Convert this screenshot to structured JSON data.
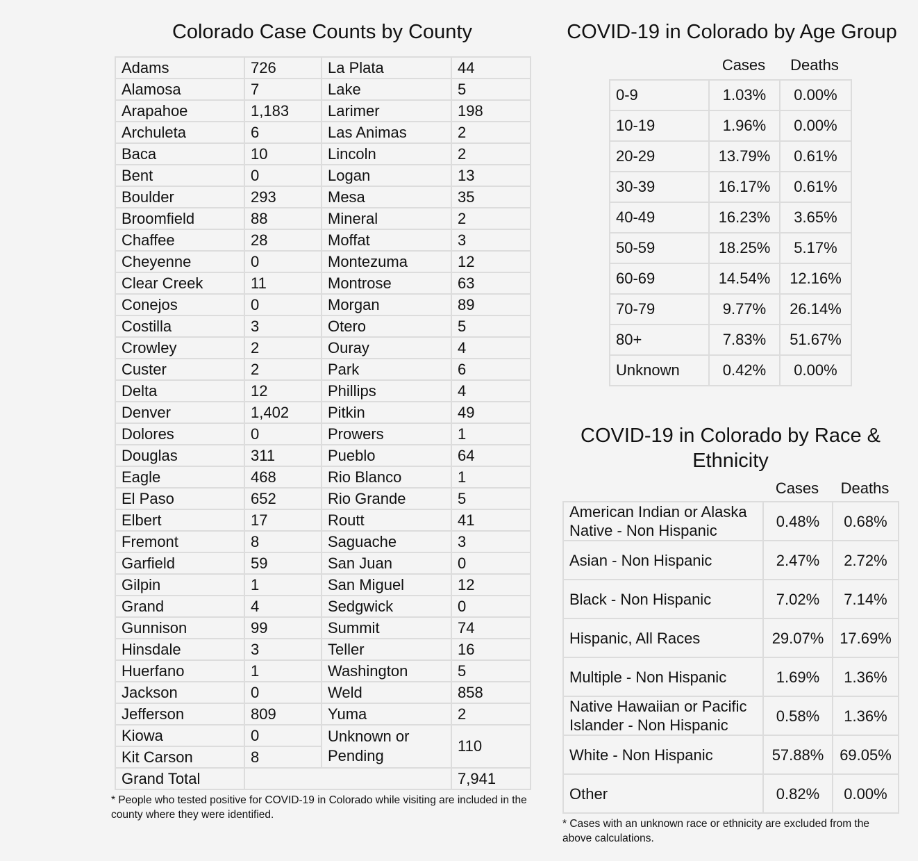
{
  "county": {
    "title": "Colorado Case Counts by County",
    "left": [
      [
        "Adams",
        "726"
      ],
      [
        "Alamosa",
        "7"
      ],
      [
        "Arapahoe",
        "1,183"
      ],
      [
        "Archuleta",
        "6"
      ],
      [
        "Baca",
        "10"
      ],
      [
        "Bent",
        "0"
      ],
      [
        "Boulder",
        "293"
      ],
      [
        "Broomfield",
        "88"
      ],
      [
        "Chaffee",
        "28"
      ],
      [
        "Cheyenne",
        "0"
      ],
      [
        "Clear Creek",
        "11"
      ],
      [
        "Conejos",
        "0"
      ],
      [
        "Costilla",
        "3"
      ],
      [
        "Crowley",
        "2"
      ],
      [
        "Custer",
        "2"
      ],
      [
        "Delta",
        "12"
      ],
      [
        "Denver",
        "1,402"
      ],
      [
        "Dolores",
        "0"
      ],
      [
        "Douglas",
        "311"
      ],
      [
        "Eagle",
        "468"
      ],
      [
        "El Paso",
        "652"
      ],
      [
        "Elbert",
        "17"
      ],
      [
        "Fremont",
        "8"
      ],
      [
        "Garfield",
        "59"
      ],
      [
        "Gilpin",
        "1"
      ],
      [
        "Grand",
        "4"
      ],
      [
        "Gunnison",
        "99"
      ],
      [
        "Hinsdale",
        "3"
      ],
      [
        "Huerfano",
        "1"
      ],
      [
        "Jackson",
        "0"
      ],
      [
        "Jefferson",
        "809"
      ],
      [
        "Kiowa",
        "0"
      ],
      [
        "Kit Carson",
        "8"
      ]
    ],
    "right": [
      [
        "La Plata",
        "44"
      ],
      [
        "Lake",
        "5"
      ],
      [
        "Larimer",
        "198"
      ],
      [
        "Las Animas",
        "2"
      ],
      [
        "Lincoln",
        "2"
      ],
      [
        "Logan",
        "13"
      ],
      [
        "Mesa",
        "35"
      ],
      [
        "Mineral",
        "2"
      ],
      [
        "Moffat",
        "3"
      ],
      [
        "Montezuma",
        "12"
      ],
      [
        "Montrose",
        "63"
      ],
      [
        "Morgan",
        "89"
      ],
      [
        "Otero",
        "5"
      ],
      [
        "Ouray",
        "4"
      ],
      [
        "Park",
        "6"
      ],
      [
        "Phillips",
        "4"
      ],
      [
        "Pitkin",
        "49"
      ],
      [
        "Prowers",
        "1"
      ],
      [
        "Pueblo",
        "64"
      ],
      [
        "Rio Blanco",
        "1"
      ],
      [
        "Rio Grande",
        "5"
      ],
      [
        "Routt",
        "41"
      ],
      [
        "Saguache",
        "3"
      ],
      [
        "San Juan",
        "0"
      ],
      [
        "San Miguel",
        "12"
      ],
      [
        "Sedgwick",
        "0"
      ],
      [
        "Summit",
        "74"
      ],
      [
        "Teller",
        "16"
      ],
      [
        "Washington",
        "5"
      ],
      [
        "Weld",
        "858"
      ],
      [
        "Yuma",
        "2"
      ],
      [
        "Unknown or Pending",
        "110"
      ]
    ],
    "total_label": "Grand Total",
    "total_value": "7,941",
    "note": "* People who tested positive for COVID-19 in Colorado while visiting are included in the county where they were identified."
  },
  "age": {
    "title": "COVID-19 in Colorado by Age Group",
    "headers": [
      "Cases",
      "Deaths"
    ],
    "rows": [
      [
        "0-9",
        "1.03%",
        "0.00%"
      ],
      [
        "10-19",
        "1.96%",
        "0.00%"
      ],
      [
        "20-29",
        "13.79%",
        "0.61%"
      ],
      [
        "30-39",
        "16.17%",
        "0.61%"
      ],
      [
        "40-49",
        "16.23%",
        "3.65%"
      ],
      [
        "50-59",
        "18.25%",
        "5.17%"
      ],
      [
        "60-69",
        "14.54%",
        "12.16%"
      ],
      [
        "70-79",
        "9.77%",
        "26.14%"
      ],
      [
        "80+",
        "7.83%",
        "51.67%"
      ],
      [
        "Unknown",
        "0.42%",
        "0.00%"
      ]
    ]
  },
  "race": {
    "title": "COVID-19 in Colorado by Race & Ethnicity",
    "headers": [
      "Cases",
      "Deaths"
    ],
    "rows": [
      [
        "American Indian or Alaska Native - Non Hispanic",
        "0.48%",
        "0.68%"
      ],
      [
        "Asian - Non Hispanic",
        "2.47%",
        "2.72%"
      ],
      [
        "Black - Non Hispanic",
        "7.02%",
        "7.14%"
      ],
      [
        "Hispanic, All Races",
        "29.07%",
        "17.69%"
      ],
      [
        "Multiple - Non Hispanic",
        "1.69%",
        "1.36%"
      ],
      [
        "Native Hawaiian or Pacific Islander - Non Hispanic",
        "0.58%",
        "1.36%"
      ],
      [
        "White - Non Hispanic",
        "57.88%",
        "69.05%"
      ],
      [
        "Other",
        "0.82%",
        "0.00%"
      ]
    ],
    "note": "* Cases with an unknown race or ethnicity are excluded from the above calculations."
  }
}
